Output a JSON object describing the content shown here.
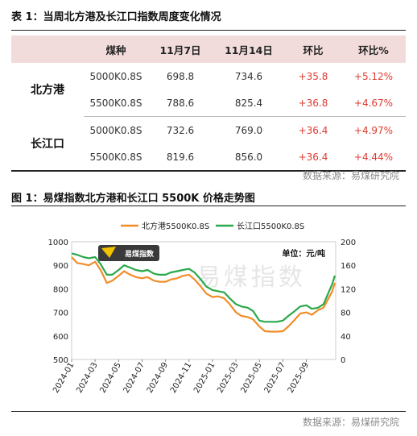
{
  "table_caption": "表 1：当周北方港及长江口指数周度变化情况",
  "table": {
    "headers": [
      "",
      "煤种",
      "11月7日",
      "11月14日",
      "环比",
      "环比%"
    ],
    "groups": [
      {
        "region": "北方港",
        "rows": [
          {
            "grade": "5000K0.8S",
            "nov7": "698.8",
            "nov14": "734.6",
            "change": "+35.8",
            "change_pct": "+5.12%"
          },
          {
            "grade": "5500K0.8S",
            "nov7": "788.6",
            "nov14": "825.4",
            "change": "+36.8",
            "change_pct": "+4.67%"
          }
        ]
      },
      {
        "region": "长江口",
        "rows": [
          {
            "grade": "5000K0.8S",
            "nov7": "732.6",
            "nov14": "769.0",
            "change": "+36.4",
            "change_pct": "+4.97%"
          },
          {
            "grade": "5500K0.8S",
            "nov7": "819.6",
            "nov14": "856.0",
            "change": "+36.4",
            "change_pct": "+4.44%"
          }
        ]
      }
    ]
  },
  "source_1": "数据来源：易煤研究院",
  "figure_caption": "图 1：易煤指数北方港和长江口 5500K 价格走势图",
  "source_2": "数据来源：易煤研究院",
  "chart_data": {
    "type": "line",
    "legend": [
      "北方港5500K0.8S",
      "长江口5500K0.8S"
    ],
    "legend_placement": "top-center",
    "unit_label": "单位：元/吨",
    "watermark": "易煤指数",
    "logo_text": "易煤指数",
    "ylim_left": [
      500,
      1000
    ],
    "ylim_right": [
      0,
      200
    ],
    "y_ticks_left": [
      "1000",
      "900",
      "800",
      "700",
      "600",
      "500"
    ],
    "y_ticks_right": [
      "200",
      "160",
      "120",
      "80",
      "40",
      "0"
    ],
    "x_range": [
      "2024-01",
      "2025-11"
    ],
    "x_ticks": [
      "2024-01",
      "2024-03",
      "2024-05",
      "2024-07",
      "2024-09",
      "2024-11",
      "2025-01",
      "2025-03",
      "2025-05",
      "2025-07",
      "2025-09"
    ],
    "colors": {
      "north": "#f28c28",
      "yangtze": "#2aa84a"
    },
    "series": [
      {
        "name": "北方港5500K0.8S",
        "points": [
          [
            "2024-01",
            935
          ],
          [
            "2024-01-15",
            910
          ],
          [
            "2024-02",
            905
          ],
          [
            "2024-02-15",
            900
          ],
          [
            "2024-03",
            915
          ],
          [
            "2024-03-15",
            880
          ],
          [
            "2024-04",
            825
          ],
          [
            "2024-04-15",
            835
          ],
          [
            "2024-05",
            855
          ],
          [
            "2024-05-15",
            875
          ],
          [
            "2024-06",
            860
          ],
          [
            "2024-06-15",
            850
          ],
          [
            "2024-07",
            845
          ],
          [
            "2024-07-15",
            850
          ],
          [
            "2024-08",
            835
          ],
          [
            "2024-08-15",
            830
          ],
          [
            "2024-09",
            830
          ],
          [
            "2024-09-15",
            840
          ],
          [
            "2024-10",
            845
          ],
          [
            "2024-10-15",
            855
          ],
          [
            "2024-11",
            860
          ],
          [
            "2024-11-15",
            840
          ],
          [
            "2024-12",
            810
          ],
          [
            "2024-12-15",
            780
          ],
          [
            "2025-01",
            765
          ],
          [
            "2025-01-15",
            768
          ],
          [
            "2025-02",
            760
          ],
          [
            "2025-02-15",
            735
          ],
          [
            "2025-03",
            700
          ],
          [
            "2025-03-15",
            685
          ],
          [
            "2025-04",
            680
          ],
          [
            "2025-04-15",
            670
          ],
          [
            "2025-05",
            640
          ],
          [
            "2025-05-15",
            620
          ],
          [
            "2025-06",
            618
          ],
          [
            "2025-06-15",
            618
          ],
          [
            "2025-07",
            620
          ],
          [
            "2025-07-15",
            640
          ],
          [
            "2025-08",
            668
          ],
          [
            "2025-08-15",
            695
          ],
          [
            "2025-09",
            700
          ],
          [
            "2025-09-15",
            690
          ],
          [
            "2025-10",
            710
          ],
          [
            "2025-10-15",
            720
          ],
          [
            "2025-11-07",
            788.6
          ],
          [
            "2025-11-14",
            825.4
          ]
        ]
      },
      {
        "name": "长江口5500K0.8S",
        "points": [
          [
            "2024-01",
            950
          ],
          [
            "2024-01-15",
            945
          ],
          [
            "2024-02",
            935
          ],
          [
            "2024-02-15",
            930
          ],
          [
            "2024-03",
            935
          ],
          [
            "2024-03-15",
            905
          ],
          [
            "2024-04",
            860
          ],
          [
            "2024-04-15",
            860
          ],
          [
            "2024-05",
            880
          ],
          [
            "2024-05-15",
            900
          ],
          [
            "2024-06",
            890
          ],
          [
            "2024-06-15",
            880
          ],
          [
            "2024-07",
            875
          ],
          [
            "2024-07-15",
            880
          ],
          [
            "2024-08",
            865
          ],
          [
            "2024-08-15",
            860
          ],
          [
            "2024-09",
            860
          ],
          [
            "2024-09-15",
            870
          ],
          [
            "2024-10",
            875
          ],
          [
            "2024-10-15",
            880
          ],
          [
            "2024-11",
            885
          ],
          [
            "2024-11-15",
            870
          ],
          [
            "2024-12",
            840
          ],
          [
            "2024-12-15",
            810
          ],
          [
            "2025-01",
            795
          ],
          [
            "2025-01-15",
            790
          ],
          [
            "2025-02",
            785
          ],
          [
            "2025-02-15",
            760
          ],
          [
            "2025-03",
            735
          ],
          [
            "2025-03-15",
            725
          ],
          [
            "2025-04",
            720
          ],
          [
            "2025-04-15",
            705
          ],
          [
            "2025-05",
            665
          ],
          [
            "2025-05-15",
            660
          ],
          [
            "2025-06",
            660
          ],
          [
            "2025-06-15",
            660
          ],
          [
            "2025-07",
            665
          ],
          [
            "2025-07-15",
            685
          ],
          [
            "2025-08",
            705
          ],
          [
            "2025-08-15",
            725
          ],
          [
            "2025-09",
            730
          ],
          [
            "2025-09-15",
            715
          ],
          [
            "2025-10",
            720
          ],
          [
            "2025-10-15",
            735
          ],
          [
            "2025-11-07",
            819.6
          ],
          [
            "2025-11-14",
            856.0
          ]
        ]
      }
    ]
  }
}
